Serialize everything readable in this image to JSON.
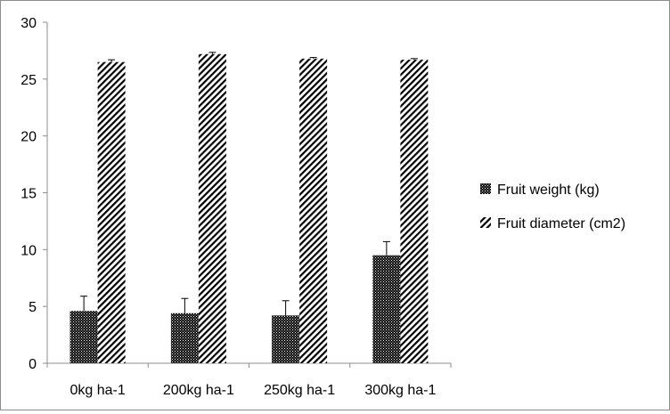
{
  "chart_data": {
    "type": "bar",
    "categories": [
      "0kg ha-1",
      "200kg ha-1",
      "250kg ha-1",
      "300kg ha-1"
    ],
    "series": [
      {
        "name": "Fruit weight (kg)",
        "values": [
          4.6,
          4.4,
          4.2,
          9.5
        ],
        "errors": [
          1.3,
          1.3,
          1.3,
          1.2
        ],
        "pattern": "dotted-dark"
      },
      {
        "name": "Fruit diameter (cm2)",
        "values": [
          26.5,
          27.2,
          26.8,
          26.7
        ],
        "errors": [
          0.2,
          0.15,
          0.1,
          0.1
        ],
        "pattern": "diagonal-hatch"
      }
    ],
    "ylim": [
      0,
      30
    ],
    "yticks": [
      0,
      5,
      10,
      15,
      20,
      25,
      30
    ],
    "legend_position": "right",
    "grid": false
  }
}
